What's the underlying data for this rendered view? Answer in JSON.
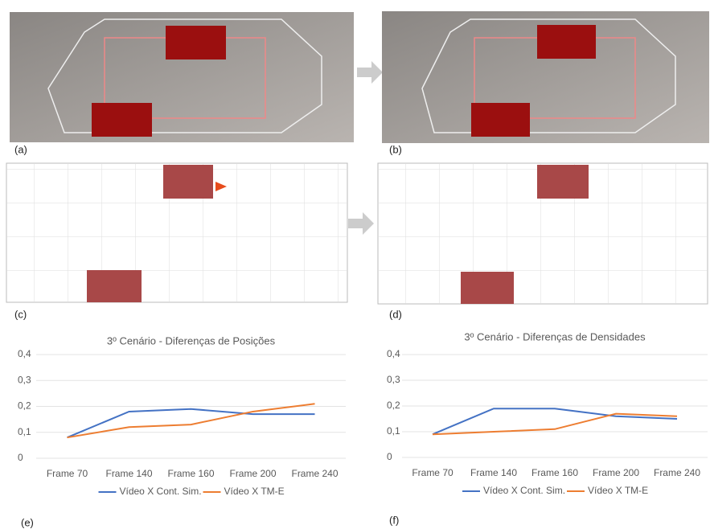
{
  "panels": [
    "(a)",
    "(b)",
    "(c)",
    "(d)",
    "(e)",
    "(f)"
  ],
  "chart_data": [
    {
      "type": "line",
      "title": "3º Cenário - Diferenças de Posições",
      "categories": [
        "Frame 70",
        "Frame 140",
        "Frame 160",
        "Frame 200",
        "Frame 240"
      ],
      "series": [
        {
          "name": "Vídeo X Cont. Sim.",
          "color": "#4472c4",
          "values": [
            0.08,
            0.18,
            0.19,
            0.17,
            0.17
          ]
        },
        {
          "name": "Vídeo X TM-E",
          "color": "#ed7d31",
          "values": [
            0.08,
            0.12,
            0.13,
            0.18,
            0.21
          ]
        }
      ],
      "ylim": [
        0,
        0.4
      ],
      "yticks": [
        0,
        {
          "value": 0.1,
          "label": "0,1"
        },
        {
          "value": 0.2,
          "label": "0,2"
        },
        {
          "value": 0.3,
          "label": "0,3"
        },
        {
          "value": 0.4,
          "label": "0,4"
        }
      ],
      "grid": true,
      "legend": "bottom"
    },
    {
      "type": "line",
      "title": "3º Cenário - Diferenças de Densidades",
      "categories": [
        "Frame 70",
        "Frame 140",
        "Frame 160",
        "Frame 200",
        "Frame 240"
      ],
      "series": [
        {
          "name": "Vídeo X Cont. Sim.",
          "color": "#4472c4",
          "values": [
            0.09,
            0.19,
            0.19,
            0.16,
            0.15
          ]
        },
        {
          "name": "Vídeo X TM-E",
          "color": "#ed7d31",
          "values": [
            0.09,
            0.1,
            0.11,
            0.17,
            0.16
          ]
        }
      ],
      "ylim": [
        0,
        0.4
      ],
      "yticks": [
        0,
        {
          "value": 0.1,
          "label": "0,1"
        },
        {
          "value": 0.2,
          "label": "0,2"
        },
        {
          "value": 0.3,
          "label": "0,3"
        },
        {
          "value": 0.4,
          "label": "0,4"
        }
      ],
      "grid": true,
      "legend": "bottom"
    }
  ]
}
